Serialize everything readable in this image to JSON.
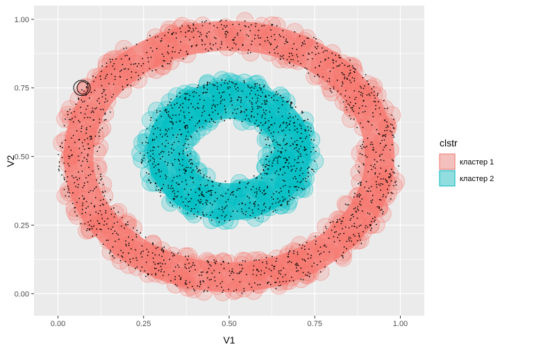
{
  "chart_data": {
    "type": "scatter",
    "title": "",
    "xlabel": "V1",
    "ylabel": "V2",
    "xlim": [
      -0.07,
      1.07
    ],
    "ylim": [
      -0.08,
      1.05
    ],
    "x_ticks": [
      0.0,
      0.25,
      0.5,
      0.75,
      1.0
    ],
    "y_ticks": [
      0.0,
      0.25,
      0.5,
      0.75,
      1.0
    ],
    "x_tick_labels": [
      "0.00",
      "0.25",
      "0.50",
      "0.75",
      "1.00"
    ],
    "y_tick_labels": [
      "0.00",
      "0.25",
      "0.50",
      "0.75",
      "1.00"
    ],
    "grid": true,
    "panel_background": "#ebebeb",
    "grid_color": "#ffffff",
    "point_color": "#000000",
    "legend": {
      "title": "clstr",
      "placement": "right",
      "entries": [
        {
          "label": "кластер 1",
          "fill": "#f8766d",
          "stroke": "#f8766d"
        },
        {
          "label": "кластер 2",
          "fill": "#00bfc4",
          "stroke": "#00bfc4"
        }
      ]
    },
    "series": [
      {
        "label": "кластер 1",
        "shape": "ring",
        "center": [
          0.5,
          0.5
        ],
        "inner_radius": 0.38,
        "outer_radius": 0.5,
        "color": "#f8766d"
      },
      {
        "label": "кластер 2",
        "shape": "ring",
        "center": [
          0.5,
          0.52
        ],
        "inner_radius": 0.11,
        "outer_radius": 0.26,
        "color": "#00bfc4"
      }
    ],
    "annotation": {
      "shape": "ellipse",
      "center": [
        0.07,
        0.75
      ]
    }
  }
}
